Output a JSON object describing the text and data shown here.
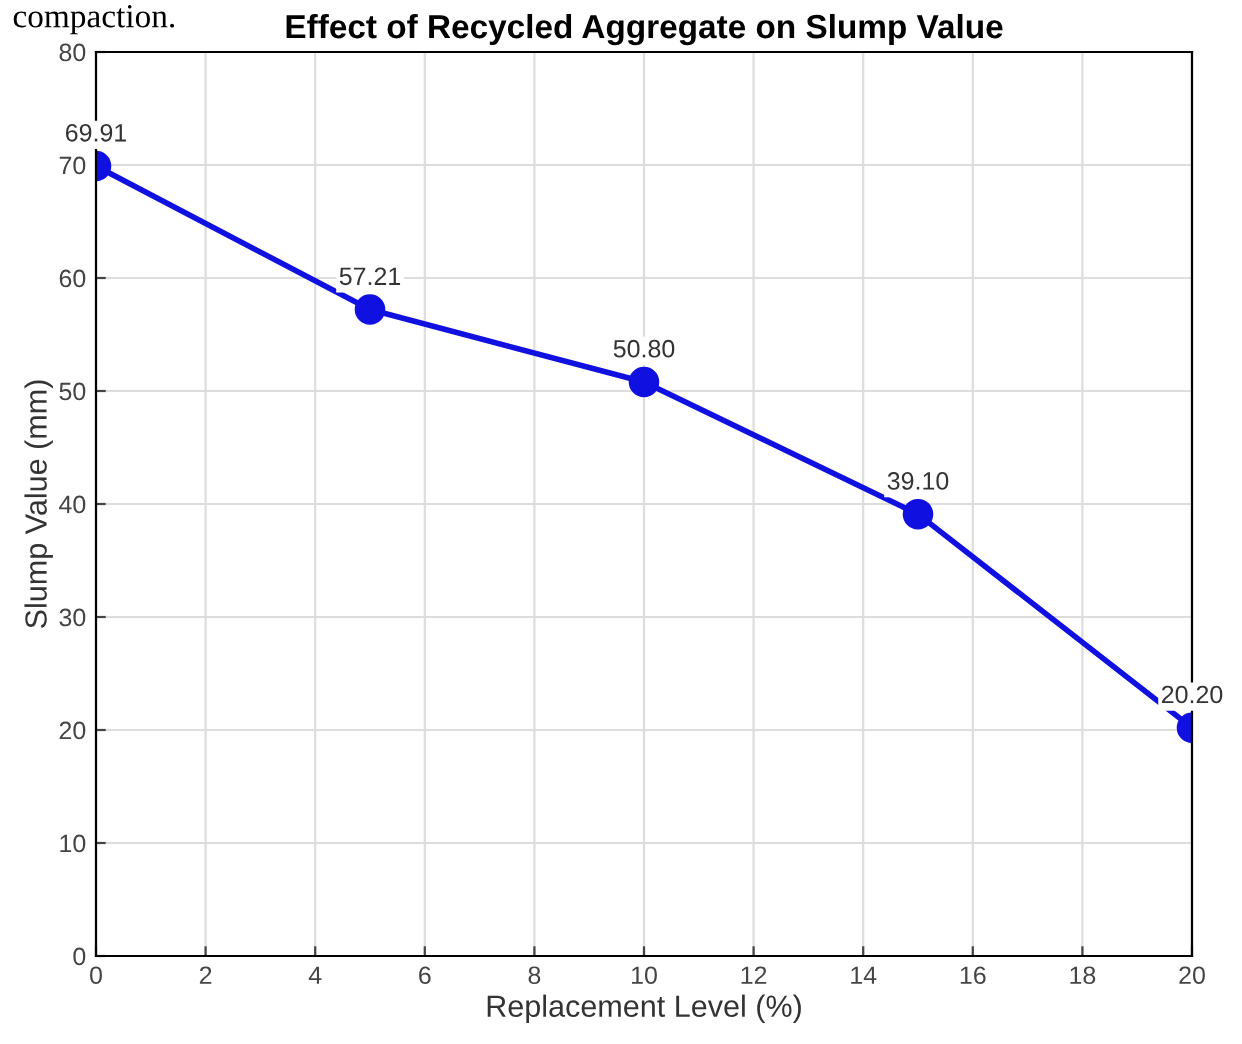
{
  "chart_data": {
    "type": "line",
    "title": "Effect of Recycled Aggregate on Slump Value",
    "xlabel": "Replacement Level (%)",
    "ylabel": "Slump Value (mm)",
    "annotations": [
      "compaction."
    ],
    "x": [
      0,
      5,
      10,
      15,
      20
    ],
    "series": [
      {
        "color": "#1010e0",
        "values": [
          69.91,
          57.21,
          50.8,
          39.1,
          20.2
        ],
        "value_labels": [
          "69.91",
          "57.21",
          "50.80",
          "39.10",
          "20.20"
        ]
      }
    ],
    "xlim": [
      0,
      20
    ],
    "xticks": [
      0,
      2,
      4,
      6,
      8,
      10,
      12,
      14,
      16,
      18,
      20
    ],
    "ylim": [
      0,
      80
    ],
    "yticks": [
      0,
      10,
      20,
      30,
      40,
      50,
      60,
      70,
      80
    ],
    "grid": true,
    "marker": "circle",
    "line_style": "solid"
  }
}
